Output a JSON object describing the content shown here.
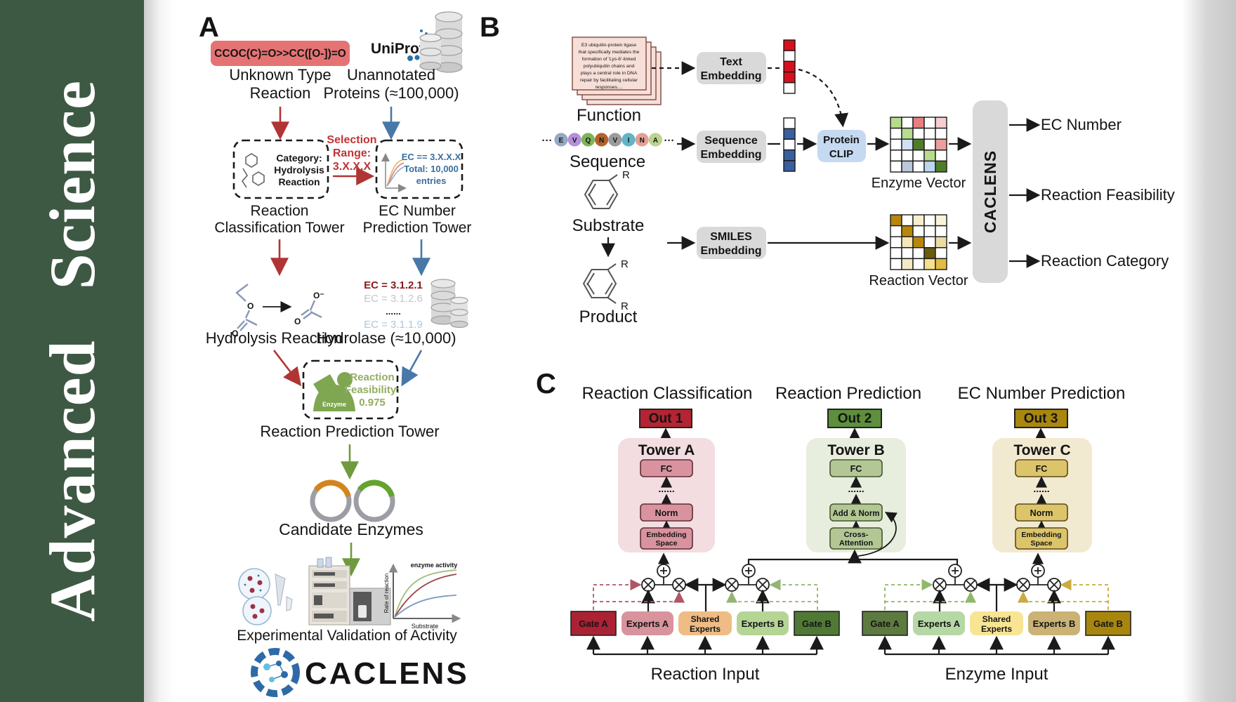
{
  "banner": {
    "title": "Advanced  Science"
  },
  "colors": {
    "banner_green": "#3e5943",
    "smiles_box": "#e57373",
    "smiles_text": "#7a1616",
    "red_accent": "#b13434",
    "blue_accent": "#4878a8",
    "green_accent": "#6f9a3d",
    "gray_box": "#d9d9d9",
    "clip_box": "#c5d9f0",
    "vector_red": "#d80f1d",
    "vector_blue": "#3a5f9e",
    "out1": "#b42432",
    "out2": "#5d8f3c",
    "out3": "#a8870e",
    "tower_a_panel": "#f3dde1",
    "tower_a_box": "#d8939f",
    "tower_b_panel": "#e7eedd",
    "tower_b_box": "#b3c795",
    "tower_c_panel": "#f2ead0",
    "tower_c_box": "#dcc46b",
    "gate_a_reaction": "#ab2234",
    "experts_a_reaction": "#d8939d",
    "shared_reaction": "#efbc85",
    "experts_b_reaction": "#b5d595",
    "gate_b_reaction": "#507935",
    "gate_a_enzyme": "#5d7a40",
    "experts_a_enzyme": "#b5d8a5",
    "shared_enzyme": "#f8e594",
    "experts_b_enzyme": "#cab375",
    "gate_b_enzyme": "#a8860e"
  },
  "panel_a": {
    "label": "A",
    "smiles": "CCOC(C)=O>>CC([O-])=O",
    "unknown": [
      "Unknown Type",
      "Reaction"
    ],
    "uniprot": "UniProt",
    "unannotated": [
      "Unannotated",
      "Proteins (≈100,000)"
    ],
    "selection": [
      "Selection",
      "Range:",
      "3.X.X.X"
    ],
    "category": [
      "Category:",
      "Hydrolysis",
      "Reaction"
    ],
    "ec_box": [
      "EC == 3.X.X.X",
      "Total: 10,000",
      "entries"
    ],
    "classification_tower": [
      "Reaction",
      "Classification Tower"
    ],
    "ec_tower": [
      "EC Number",
      "Prediction Tower"
    ],
    "atom_o": "O",
    "atom_o_minus": "O⁻",
    "hydrolysis": "Hydrolysis Reaction",
    "ec_list": [
      "EC = 3.1.2.1",
      "EC = 3.1.2.6",
      "......",
      "EC = 3.1.1.9"
    ],
    "hydrolase": "Hydrolase (≈10,000)",
    "enzyme": "Enzyme",
    "feasibility": [
      "Reaction",
      "Feasibility:",
      "0.975"
    ],
    "prediction_tower": "Reaction Prediction Tower",
    "candidate": "Candidate Enzymes",
    "plot": {
      "curve": "enzyme activity",
      "ylabel": "Rate of reaction",
      "xlabel": "Substrate"
    },
    "validation": "Experimental Validation of Activity",
    "logo": "CACLENS"
  },
  "panel_b": {
    "label": "B",
    "card_lines": [
      "E3 ubiquitin-protein ligase",
      "that specifically mediates the",
      "formation of 'Lys-6'-linked",
      "polyubiquitin chains and",
      "plays a central role in DNA",
      "repair by facilitating cellular",
      "responses...."
    ],
    "function": "Function",
    "ellipsis": "···",
    "residues": [
      {
        "l": "E",
        "c": "#93a9c4"
      },
      {
        "l": "V",
        "c": "#b48fdb"
      },
      {
        "l": "Q",
        "c": "#7cb356"
      },
      {
        "l": "N",
        "c": "#b2622a"
      },
      {
        "l": "V",
        "c": "#9b9b9b"
      },
      {
        "l": "I",
        "c": "#62b4c6"
      },
      {
        "l": "N",
        "c": "#e2a195"
      },
      {
        "l": "A",
        "c": "#bcd38d"
      }
    ],
    "sequence": "Sequence",
    "substrate": "Substrate",
    "r": "R",
    "product": "Product",
    "text_embedding": [
      "Text",
      "Embedding"
    ],
    "sequence_embedding": [
      "Sequence",
      "Embedding"
    ],
    "smiles_embedding": [
      "SMILES",
      "Embedding"
    ],
    "protein_clip": [
      "Protein",
      "CLIP"
    ],
    "text_vector": [
      [
        "#d80f1d"
      ],
      [
        "#ffffff"
      ],
      [
        "#d80f1d"
      ],
      [
        "#d80f1d"
      ],
      [
        "#ffffff"
      ]
    ],
    "seq_vector": [
      [
        "#ffffff"
      ],
      [
        "#3a5f9e"
      ],
      [
        "#ffffff"
      ],
      [
        "#3a5f9e"
      ],
      [
        "#3a5f9e"
      ]
    ],
    "enzyme_grid": [
      [
        "#b7dc8e",
        "#ffffff",
        "#e87f7f",
        "#ffffff",
        "#f6cdd1"
      ],
      [
        "#ffffff",
        "#b7dc8e",
        "#ffffff",
        "#ffffff",
        "#ffffff"
      ],
      [
        "#ffffff",
        "#cfe0f2",
        "#4e7d2a",
        "#ffffff",
        "#eb9e9e"
      ],
      [
        "#ffffff",
        "#ffffff",
        "#ffffff",
        "#b7dc8e",
        "#ffffff"
      ],
      [
        "#ffffff",
        "#bac9d9",
        "#ffffff",
        "#bdd6ef",
        "#4e7d2a"
      ]
    ],
    "reaction_grid": [
      [
        "#b8860b",
        "#ffffff",
        "#f7eecd",
        "#ffffff",
        "#faf3da"
      ],
      [
        "#ffffff",
        "#b8860b",
        "#ffffff",
        "#ffffff",
        "#ffffff"
      ],
      [
        "#ffffff",
        "#f3e7bb",
        "#b8860b",
        "#ffffff",
        "#ecdca4"
      ],
      [
        "#ffffff",
        "#ffffff",
        "#ffffff",
        "#6b5b0e",
        "#ffffff"
      ],
      [
        "#ffffff",
        "#f3eac5",
        "#ffffff",
        "#f6df8d",
        "#e3bc45"
      ]
    ],
    "enzyme_vector": "Enzyme Vector",
    "reaction_vector": "Reaction Vector",
    "caclens": "CACLENS",
    "outputs": [
      "EC Number",
      "Reaction Feasibility",
      "Reaction Category"
    ]
  },
  "panel_c": {
    "label": "C",
    "titles": [
      "Reaction Classification",
      "Reaction Prediction",
      "EC Number Prediction"
    ],
    "outs": [
      "Out 1",
      "Out 2",
      "Out 3"
    ],
    "tower_a": {
      "name": "Tower A",
      "fc": "FC",
      "dots": "......",
      "norm": "Norm",
      "emb": [
        "Embedding",
        "Space"
      ]
    },
    "tower_b": {
      "name": "Tower B",
      "fc": "FC",
      "dots": "......",
      "addnorm": "Add & Norm",
      "cross": [
        "Cross-",
        "Attention"
      ]
    },
    "tower_c": {
      "name": "Tower C",
      "fc": "FC",
      "dots": "......",
      "norm": "Norm",
      "emb": [
        "Embedding",
        "Space"
      ]
    },
    "gates": {
      "gate_a": "Gate A",
      "experts_a": "Experts A",
      "shared": [
        "Shared",
        "Experts"
      ],
      "experts_b": "Experts B",
      "gate_b": "Gate B"
    },
    "inputs": [
      "Reaction Input",
      "Enzyme Input"
    ]
  }
}
